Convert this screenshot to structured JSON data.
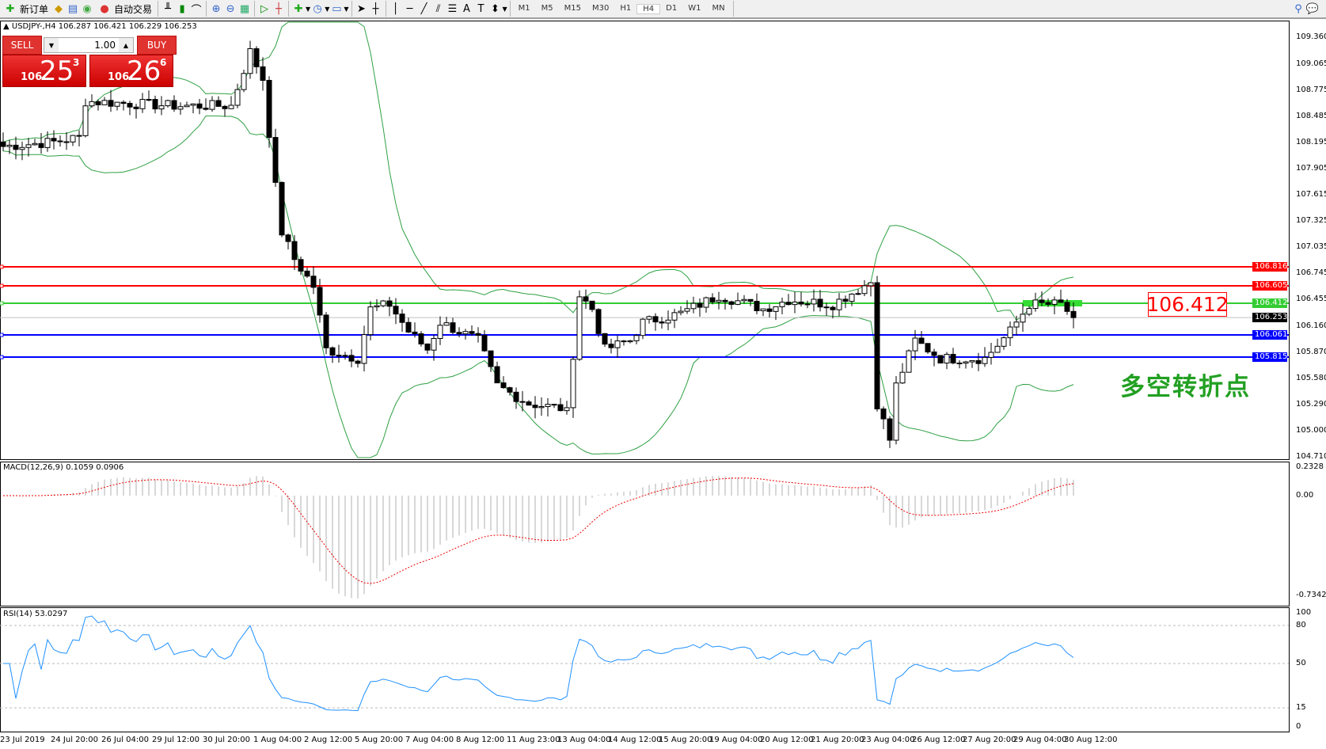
{
  "toolbar": {
    "new_order": "新订单",
    "auto_trading": "自动交易",
    "timeframes": [
      "M1",
      "M5",
      "M15",
      "M30",
      "H1",
      "H4",
      "D1",
      "W1",
      "MN"
    ],
    "active_timeframe": "H4"
  },
  "symbol_info": "USDJPY-,H4  106.287 106.421 106.229 106.253",
  "trade_panel": {
    "sell_label": "SELL",
    "buy_label": "BUY",
    "lot": "1.00",
    "sell_big": "106",
    "sell_main": "25",
    "sell_sup": "3",
    "buy_big": "106",
    "buy_main": "26",
    "buy_sup": "6"
  },
  "chart": {
    "price_axis": [
      "109.360",
      "109.065",
      "108.775",
      "108.485",
      "108.195",
      "107.905",
      "107.615",
      "107.325",
      "107.035",
      "106.745",
      "106.455",
      "106.160",
      "105.870",
      "105.580",
      "105.290",
      "105.000",
      "104.710"
    ],
    "levels": [
      {
        "price": "106.816",
        "color": "#ff0000"
      },
      {
        "price": "106.605",
        "color": "#ff0000"
      },
      {
        "price": "106.412",
        "color": "#33cc33"
      },
      {
        "price": "106.061",
        "color": "#0000ff"
      },
      {
        "price": "105.815",
        "color": "#0000ff"
      }
    ],
    "bid": "106.253",
    "annotation_price": "106.412",
    "annotation_text": "多空转折点",
    "close_anchors": [
      [
        0,
        108.15
      ],
      [
        8,
        108.2
      ],
      [
        12,
        108.25
      ],
      [
        13,
        108.65
      ],
      [
        27,
        108.6
      ],
      [
        36,
        108.6
      ],
      [
        38,
        109.0
      ],
      [
        39,
        109.2
      ],
      [
        41,
        108.9
      ],
      [
        43,
        107.7
      ],
      [
        44,
        107.2
      ],
      [
        46,
        106.9
      ],
      [
        49,
        106.6
      ],
      [
        51,
        105.9
      ],
      [
        56,
        105.8
      ],
      [
        58,
        106.35
      ],
      [
        61,
        106.4
      ],
      [
        64,
        106.1
      ],
      [
        67,
        105.9
      ],
      [
        69,
        106.2
      ],
      [
        75,
        106.0
      ],
      [
        78,
        105.5
      ],
      [
        83,
        105.3
      ],
      [
        88,
        105.25
      ],
      [
        89,
        105.2
      ],
      [
        91,
        106.5
      ],
      [
        93,
        106.35
      ],
      [
        95,
        105.9
      ],
      [
        99,
        106.0
      ],
      [
        101,
        106.2
      ],
      [
        107,
        106.3
      ],
      [
        113,
        106.5
      ],
      [
        120,
        106.35
      ],
      [
        124,
        106.45
      ],
      [
        131,
        106.4
      ],
      [
        137,
        106.65
      ],
      [
        138,
        105.3
      ],
      [
        140,
        104.9
      ],
      [
        141,
        105.5
      ],
      [
        144,
        106.0
      ],
      [
        148,
        105.8
      ],
      [
        155,
        105.8
      ],
      [
        159,
        106.1
      ],
      [
        162,
        106.4
      ],
      [
        167,
        106.4
      ],
      [
        169,
        106.253
      ]
    ]
  },
  "macd": {
    "label": "MACD(12,26,9) 0.1059 0.0906",
    "axis": [
      "0.2328",
      "0.00",
      "-0.7342"
    ]
  },
  "rsi": {
    "label": "RSI(14) 53.0297",
    "axis": [
      "100",
      "80",
      "50",
      "15",
      "0"
    ]
  },
  "time_axis": [
    "23 Jul 2019",
    "24 Jul 20:00",
    "26 Jul 04:00",
    "29 Jul 12:00",
    "30 Jul 20:00",
    "1 Aug 04:00",
    "2 Aug 12:00",
    "5 Aug 20:00",
    "7 Aug 04:00",
    "8 Aug 12:00",
    "11 Aug 23:00",
    "13 Aug 04:00",
    "14 Aug 12:00",
    "15 Aug 20:00",
    "19 Aug 04:00",
    "20 Aug 12:00",
    "21 Aug 20:00",
    "23 Aug 04:00",
    "26 Aug 12:00",
    "27 Aug 20:00",
    "29 Aug 04:00",
    "30 Aug 12:00"
  ]
}
